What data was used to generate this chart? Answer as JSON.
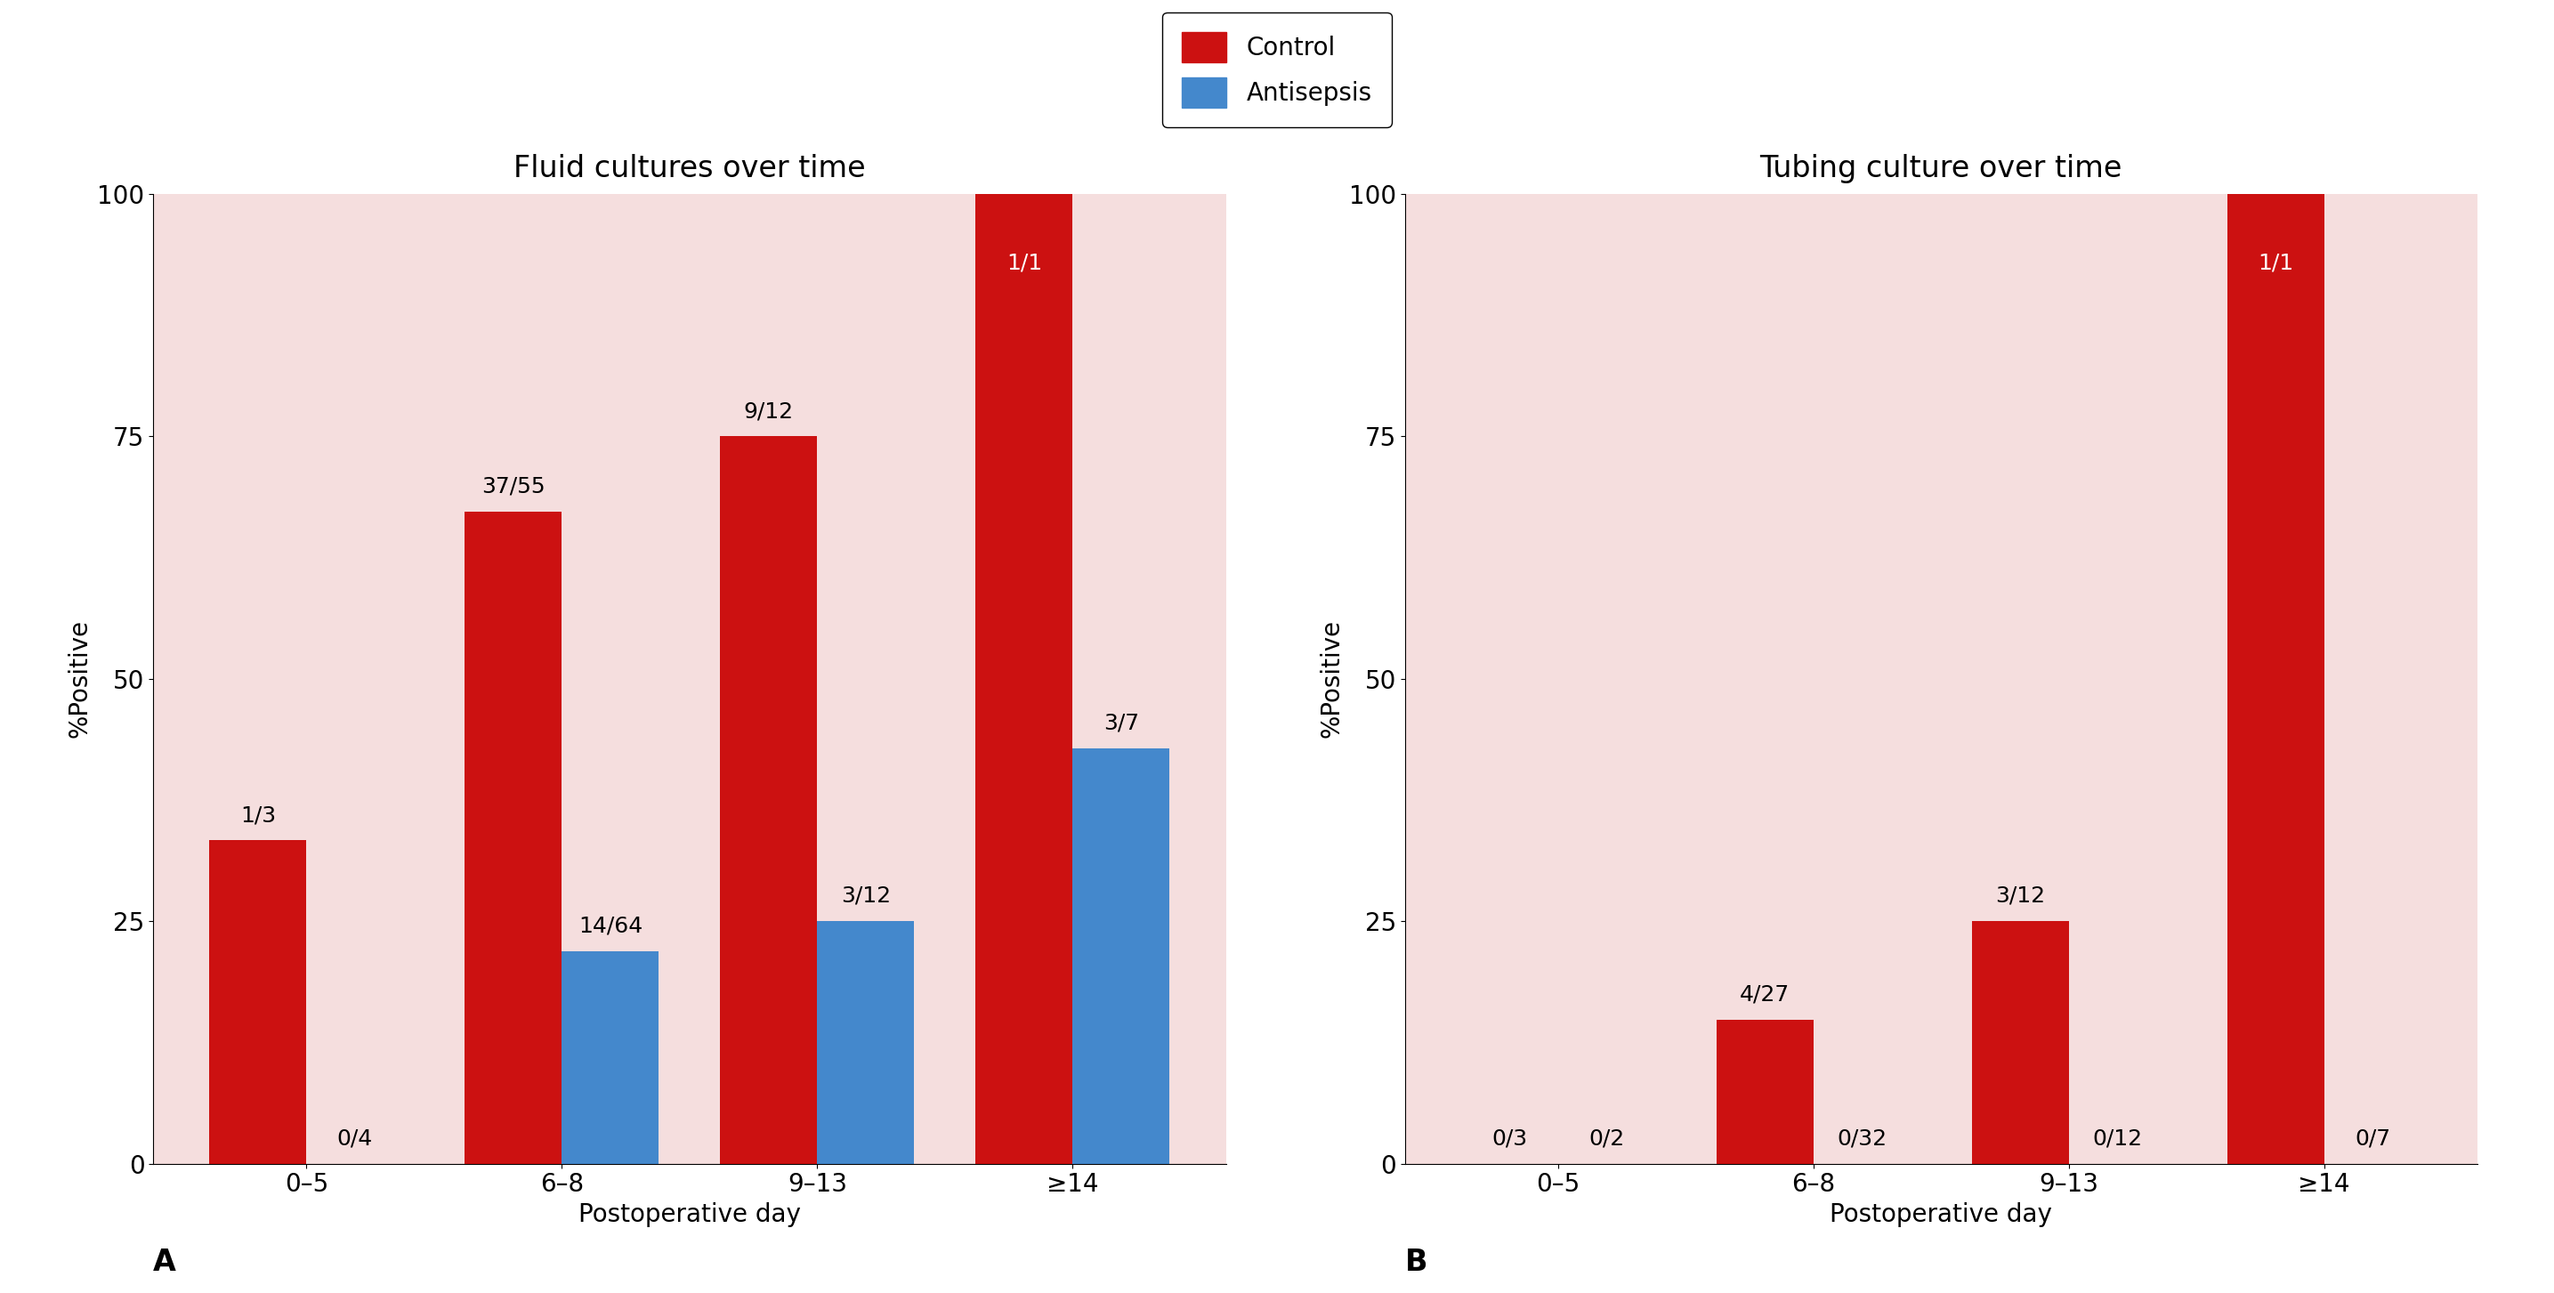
{
  "panel_A": {
    "title": "Fluid cultures over time",
    "categories": [
      "0–5",
      "6–8",
      "9–13",
      "≥14"
    ],
    "control_values": [
      33.33,
      67.27,
      75.0,
      100.0
    ],
    "antisepsis_values": [
      0.0,
      21.875,
      25.0,
      42.857
    ],
    "control_labels": [
      "1/3",
      "37/55",
      "9/12",
      "1/1"
    ],
    "antisepsis_labels": [
      "0/4",
      "14/64",
      "3/12",
      "3/7"
    ],
    "control_label_colors": [
      "black",
      "black",
      "black",
      "white"
    ],
    "antisepsis_label_colors": [
      "black",
      "black",
      "black",
      "black"
    ]
  },
  "panel_B": {
    "title": "Tubing culture over time",
    "categories": [
      "0–5",
      "6–8",
      "9–13",
      "≥14"
    ],
    "control_values": [
      0.0,
      14.815,
      25.0,
      100.0
    ],
    "antisepsis_values": [
      0.0,
      0.0,
      0.0,
      0.0
    ],
    "control_labels": [
      "0/3",
      "4/27",
      "3/12",
      "1/1"
    ],
    "antisepsis_labels": [
      "0/2",
      "0/32",
      "0/12",
      "0/7"
    ],
    "control_label_colors": [
      "black",
      "black",
      "black",
      "white"
    ],
    "antisepsis_label_colors": [
      "black",
      "black",
      "black",
      "black"
    ]
  },
  "control_color": "#cc1111",
  "antisepsis_color": "#4488cc",
  "background_color": "#f5dede",
  "ylabel": "%Positive",
  "xlabel": "Postoperative day",
  "ylim": [
    0,
    100
  ],
  "yticks": [
    0,
    25,
    50,
    75,
    100
  ],
  "bar_width": 0.38,
  "legend_labels": [
    "Control",
    "Antisepsis"
  ],
  "panel_labels": [
    "A",
    "B"
  ],
  "title_fontsize": 24,
  "label_fontsize": 20,
  "tick_fontsize": 20,
  "annotation_fontsize": 18,
  "legend_fontsize": 20,
  "panel_label_fontsize": 24
}
